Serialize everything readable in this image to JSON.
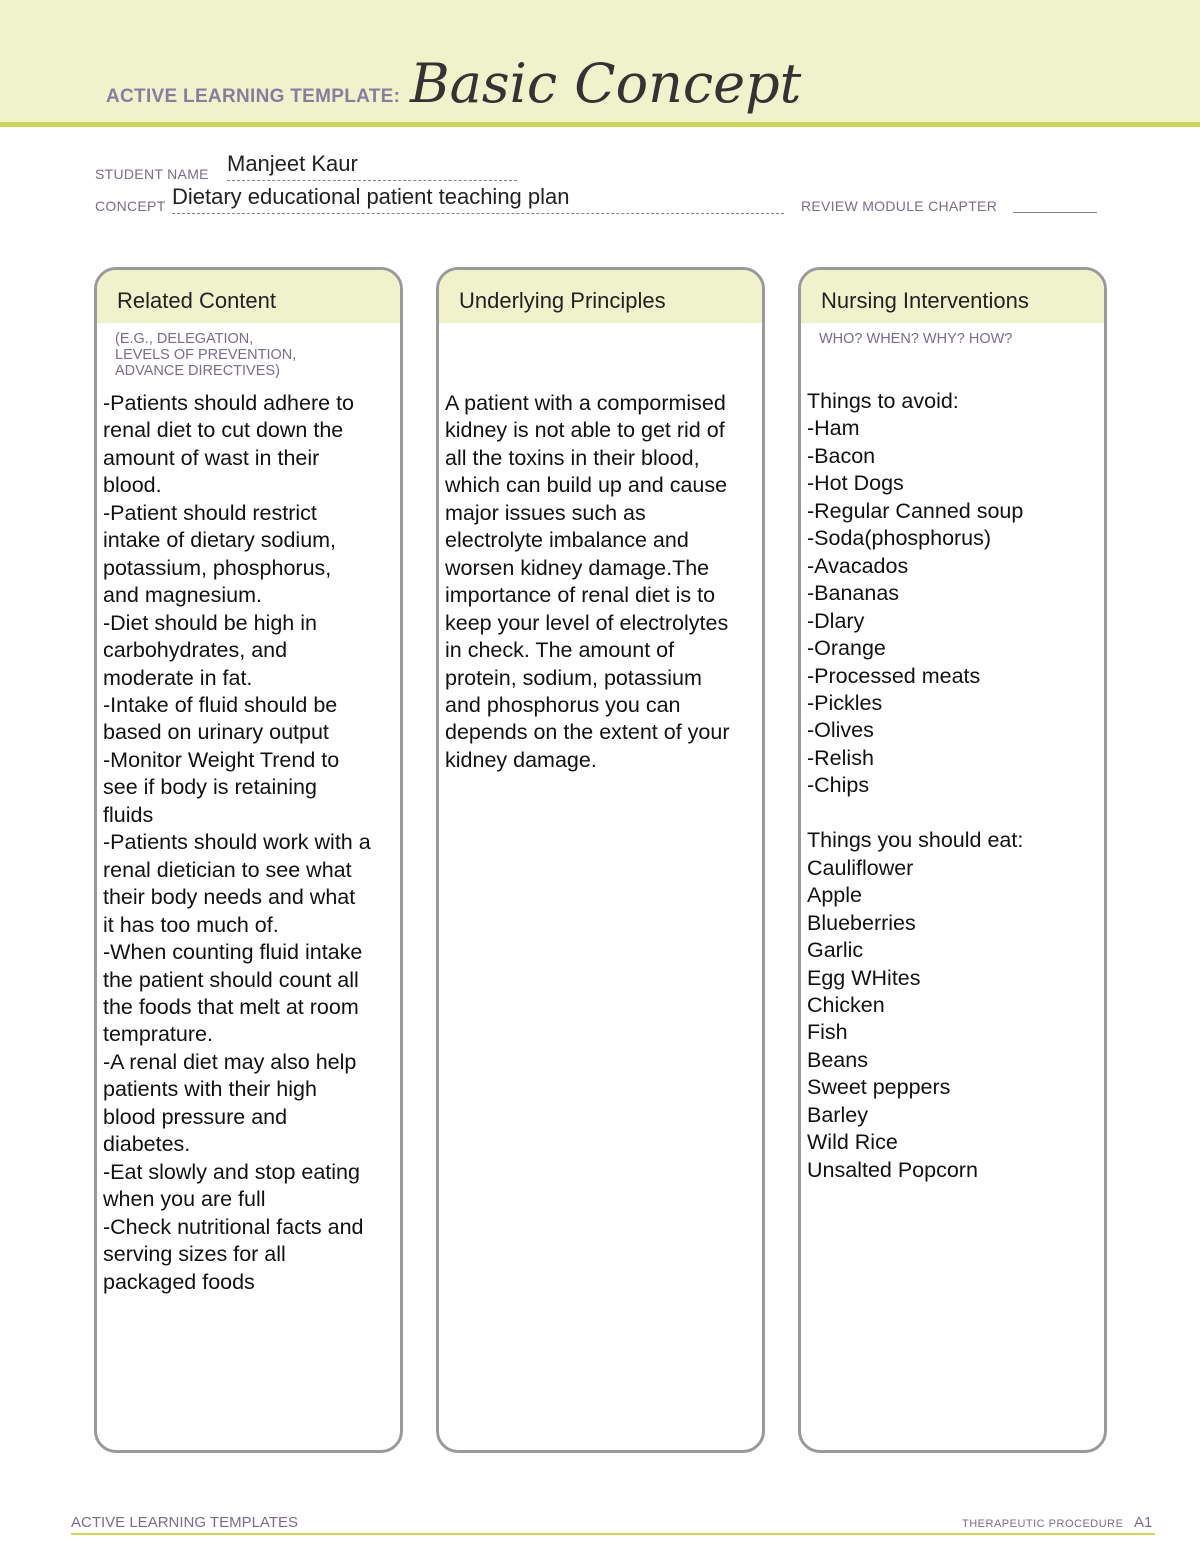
{
  "header": {
    "template_label": "ACTIVE LEARNING TEMPLATE:",
    "title": "Basic Concept"
  },
  "fields": {
    "student_name_label": "STUDENT NAME",
    "student_name": "Manjeet Kaur",
    "concept_label": "CONCEPT",
    "concept": "Dietary educational patient teaching plan",
    "review_label": "REVIEW MODULE CHAPTER",
    "review_value": ""
  },
  "columns": [
    {
      "title": "Related Content",
      "subtitle": [
        "(E.G., DELEGATION,",
        "LEVELS OF PREVENTION,",
        "ADVANCE DIRECTIVES)"
      ],
      "lines": [
        "-Patients should adhere to",
        "renal diet to cut down the",
        "amount of wast in their",
        "blood.",
        "-Patient should restrict",
        "intake of dietary sodium,",
        "potassium, phosphorus,",
        "and magnesium.",
        "-Diet should be high in",
        "carbohydrates, and",
        "moderate in fat.",
        "-Intake of fluid should be",
        "based on urinary output",
        "-Monitor Weight Trend to",
        "see if body is retaining",
        "fluids",
        "-Patients should work with a",
        "renal dietician to see what",
        "their body needs and what",
        "it has too much of.",
        "-When counting fluid intake",
        "the patient should count all",
        "the foods that melt at room",
        "temprature.",
        "-A renal diet may also help",
        "patients with their high",
        "blood pressure and",
        "diabetes.",
        "-Eat slowly and stop eating",
        "when you are full",
        "-Check nutritional facts and",
        "serving sizes for all",
        "packaged foods"
      ]
    },
    {
      "title": "Underlying Principles",
      "subtitle": [],
      "lines": [
        "A patient with a compormised",
        "kidney is not able to get rid of",
        "all the toxins in their blood,",
        "which can build up and cause",
        "major issues such as",
        "electrolyte imbalance and",
        "worsen kidney damage.The",
        "importance of renal diet is to",
        "keep your level of electrolytes",
        "in check.  The amount of",
        "protein, sodium, potassium",
        "and phosphorus you can",
        "depends on the extent of your",
        "kidney damage."
      ]
    },
    {
      "title": "Nursing Interventions",
      "subtitle": [
        "WHO? WHEN? WHY? HOW?"
      ],
      "lines": [
        "Things to avoid:",
        "-Ham",
        "-Bacon",
        "-Hot Dogs",
        "-Regular Canned soup",
        "-Soda(phosphorus)",
        "-Avacados",
        "-Bananas",
        "-Dlary",
        "-Orange",
        "-Processed meats",
        "-Pickles",
        "-Olives",
        "-Relish",
        "-Chips",
        "",
        "Things you should eat:",
        "Cauliflower",
        "Apple",
        "Blueberries",
        "Garlic",
        "Egg WHites",
        "Chicken",
        "Fish",
        "Beans",
        "Sweet peppers",
        "Barley",
        "Wild Rice",
        "Unsalted Popcorn"
      ]
    }
  ],
  "footer": {
    "left": "ACTIVE LEARNING TEMPLATES",
    "right": "THERAPEUTIC PROCEDURE",
    "page": "A1"
  }
}
